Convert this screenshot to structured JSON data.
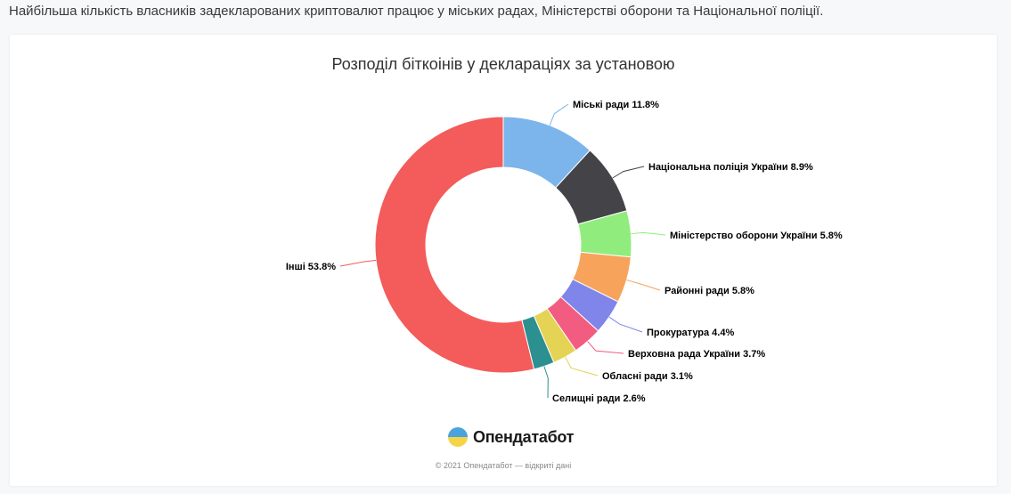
{
  "headline": "Найбільша кількість власників задекларованих криптовалют працює у міських радах, Міністерстві оборони та Національної поліції.",
  "logo_text": "Опендатабот",
  "footer": "© 2021 Опендатабот — відкриті дані",
  "chart_data": {
    "type": "pie",
    "donut": true,
    "title": "Розподіл біткоінів у деклараціях за установою",
    "slices": [
      {
        "label": "Міські ради",
        "value": 11.8,
        "color": "#7cb5ec"
      },
      {
        "label": "Національна поліція України",
        "value": 8.9,
        "color": "#434348"
      },
      {
        "label": "Міністерство оборони України",
        "value": 5.8,
        "color": "#90ed7d"
      },
      {
        "label": "Районні ради",
        "value": 5.8,
        "color": "#f7a35c"
      },
      {
        "label": "Прокуратура",
        "value": 4.4,
        "color": "#8085e9"
      },
      {
        "label": "Верховна рада України",
        "value": 3.7,
        "color": "#f15c80"
      },
      {
        "label": "Обласні ради",
        "value": 3.1,
        "color": "#e4d354"
      },
      {
        "label": "Селищні ради",
        "value": 2.6,
        "color": "#2b908f"
      },
      {
        "label": "Інші",
        "value": 53.8,
        "color": "#f45b5b"
      }
    ]
  }
}
